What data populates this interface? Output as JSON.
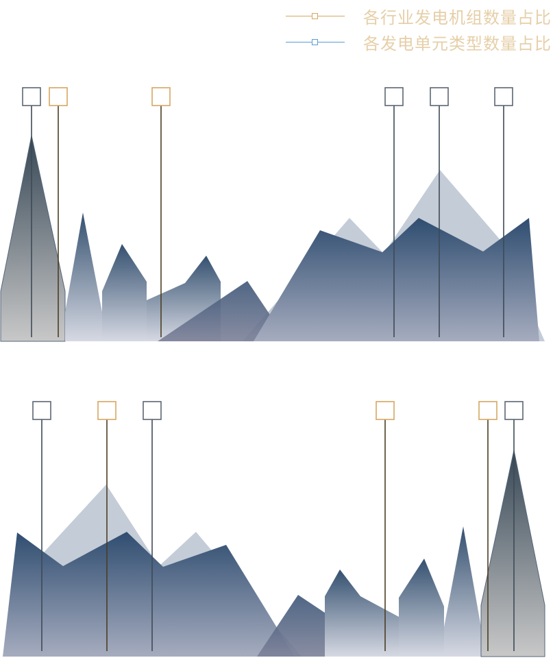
{
  "colors": {
    "series_industry": "#d6a661",
    "series_unit": "#5b9bd5",
    "legend_text": "#e6cfa8",
    "mountain_dark": "#2f4d70",
    "mountain_light_fill": "#c4ccd7",
    "mountain_grey": "#3f4f5c"
  },
  "chart_data": {
    "type": "area",
    "title": "",
    "legend": {
      "placement": "top-right",
      "entries": [
        {
          "label": "各行业发电机组数量占比",
          "color": "#d6a661",
          "marker": "square"
        },
        {
          "label": "各发电单元类型数量占比",
          "color": "#5b9bd5",
          "marker": "square"
        }
      ]
    },
    "panels": [
      {
        "name": "top",
        "markers": [
          {
            "series": "unit",
            "position": 0.057
          },
          {
            "series": "industry",
            "position": 0.105
          },
          {
            "series": "industry",
            "position": 0.291
          },
          {
            "series": "unit",
            "position": 0.712
          },
          {
            "series": "unit",
            "position": 0.794
          },
          {
            "series": "unit",
            "position": 0.911
          }
        ]
      },
      {
        "name": "bottom",
        "markers": [
          {
            "series": "unit",
            "position": 0.076
          },
          {
            "series": "industry",
            "position": 0.193
          },
          {
            "series": "unit",
            "position": 0.275
          },
          {
            "series": "industry",
            "position": 0.696
          },
          {
            "series": "industry",
            "position": 0.882
          },
          {
            "series": "unit",
            "position": 0.929
          }
        ]
      }
    ]
  }
}
